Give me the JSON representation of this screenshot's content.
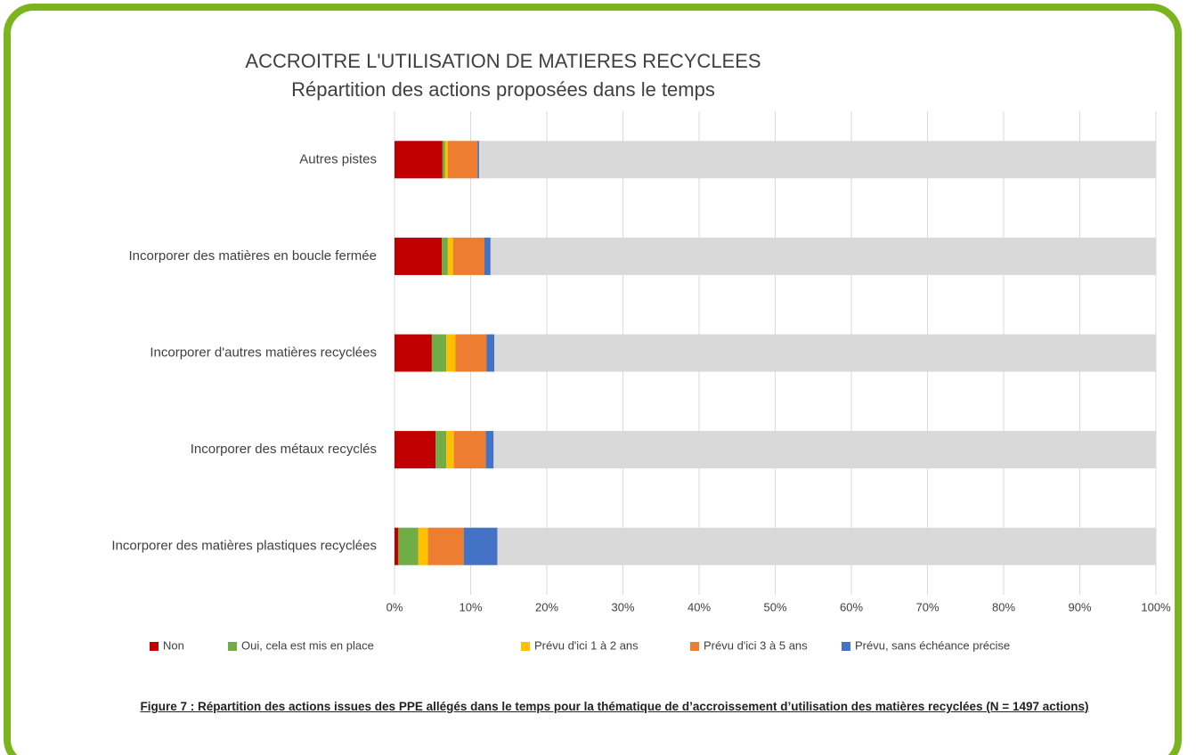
{
  "chart_data": {
    "type": "stacked_barh",
    "title": "ACCROITRE L'UTILISATION DE MATIERES RECYCLEES",
    "subtitle": "Répartition des actions proposées dans le temps",
    "caption": "Figure 7 : Répartition des actions issues des PPE allégés dans le temps pour la thématique de d’accroissement d’utilisation des matières recyclées (N = 1497 actions)",
    "categories": [
      "Autres pistes",
      "Incorporer des matières en boucle fermée",
      "Incorporer d'autres matières recyclées",
      "Incorporer des métaux recyclés",
      "Incorporer des matières plastiques recyclées"
    ],
    "series": [
      {
        "name": "Non",
        "color": "#c00000",
        "values": [
          6.3,
          6.2,
          4.9,
          5.4,
          0.5
        ]
      },
      {
        "name": "Oui, cela est mis en place",
        "color": "#70ad47",
        "values": [
          0.35,
          0.8,
          1.9,
          1.4,
          2.6
        ]
      },
      {
        "name": "Prévu d'ici 1 à 2 ans",
        "color": "#ffc000",
        "values": [
          0.35,
          0.7,
          1.2,
          1.0,
          1.3
        ]
      },
      {
        "name": "Prévu d'ici 3 à 5 ans",
        "color": "#ed7d31",
        "values": [
          3.9,
          4.1,
          4.1,
          4.2,
          4.7
        ]
      },
      {
        "name": "Prévu, sans échéance précise",
        "color": "#4472c4",
        "values": [
          0.2,
          0.8,
          1.0,
          1.0,
          4.4
        ]
      }
    ],
    "xlim": [
      0,
      100
    ],
    "xticks": [
      {
        "value": 0,
        "label": "0%"
      },
      {
        "value": 10,
        "label": "10%"
      },
      {
        "value": 20,
        "label": "20%"
      },
      {
        "value": 30,
        "label": "30%"
      },
      {
        "value": 40,
        "label": "40%"
      },
      {
        "value": 50,
        "label": "50%"
      },
      {
        "value": 60,
        "label": "60%"
      },
      {
        "value": 70,
        "label": "70%"
      },
      {
        "value": 80,
        "label": "80%"
      },
      {
        "value": 90,
        "label": "90%"
      },
      {
        "value": 100,
        "label": "100%"
      }
    ],
    "grid": true,
    "legend": "bottom"
  }
}
